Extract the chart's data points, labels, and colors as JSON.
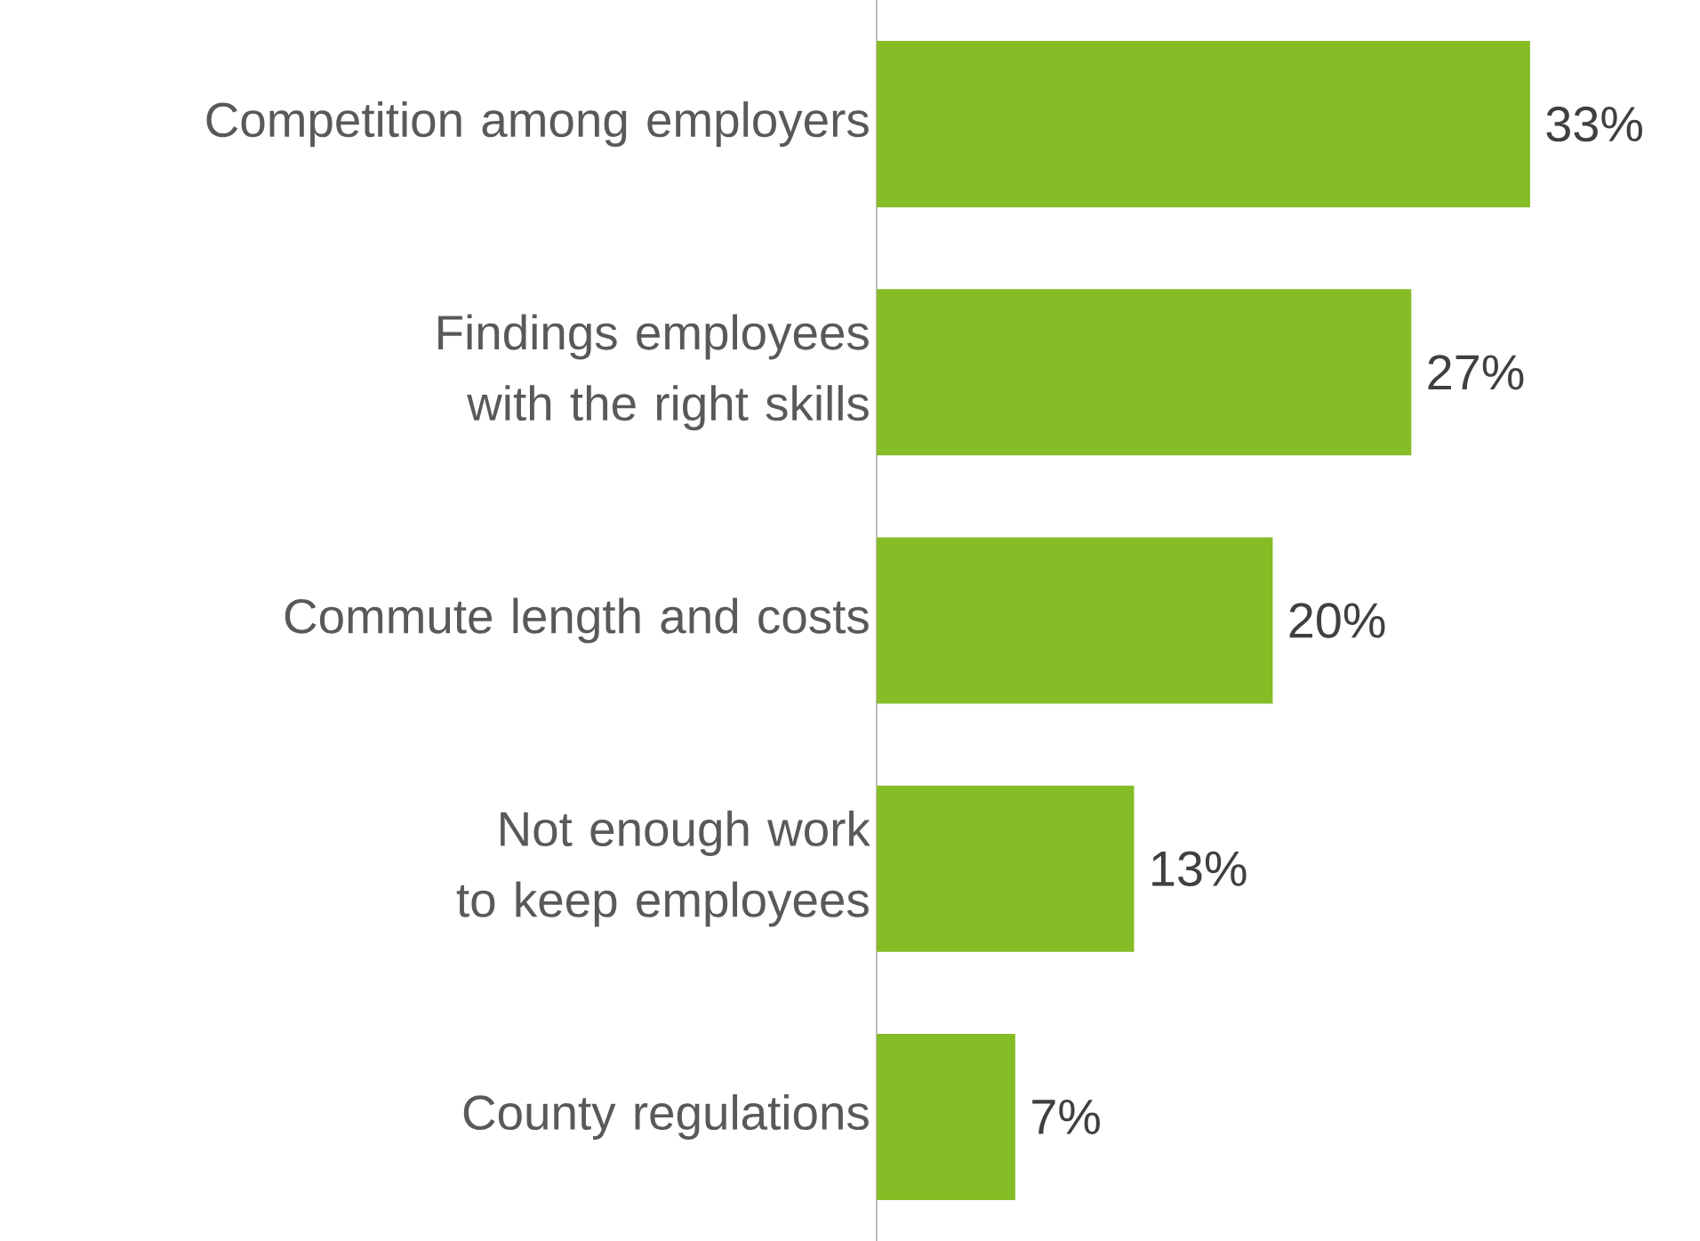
{
  "chart_data": {
    "type": "bar",
    "orientation": "horizontal",
    "categories": [
      "Competition among employers",
      "Findings employees with the right skills",
      "Commute length and costs",
      "Not enough work to keep employees",
      "County regulations"
    ],
    "values": [
      33,
      27,
      20,
      13,
      7
    ],
    "value_labels": [
      "33%",
      "27%",
      "20%",
      "13%",
      "7%"
    ],
    "color": "#86bc25"
  }
}
